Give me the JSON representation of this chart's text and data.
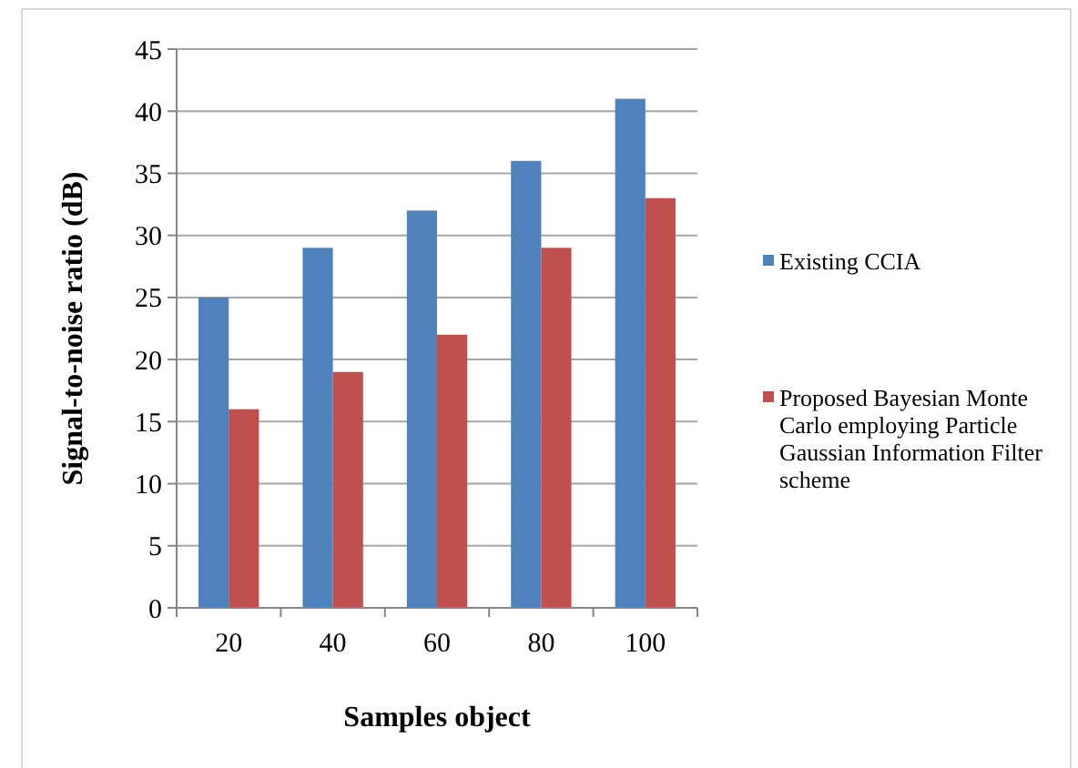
{
  "chart_data": {
    "type": "bar",
    "xlabel": "Samples object",
    "ylabel": "Signal-to-noise ratio (dB)",
    "categories": [
      "20",
      "40",
      "60",
      "80",
      "100"
    ],
    "series": [
      {
        "name": "Existing   CCIA",
        "color": "#4f81bd",
        "values": [
          25,
          29,
          32,
          36,
          41
        ]
      },
      {
        "name": "Proposed  Bayesian Monte Carlo employing Particle Gaussian Information Filter scheme",
        "color": "#c0504d",
        "values": [
          16,
          19,
          22,
          29,
          33
        ]
      }
    ],
    "ylim": [
      0,
      45
    ],
    "yticks": [
      0,
      5,
      10,
      15,
      20,
      25,
      30,
      35,
      40,
      45
    ],
    "grid": "y",
    "legend": "right"
  }
}
